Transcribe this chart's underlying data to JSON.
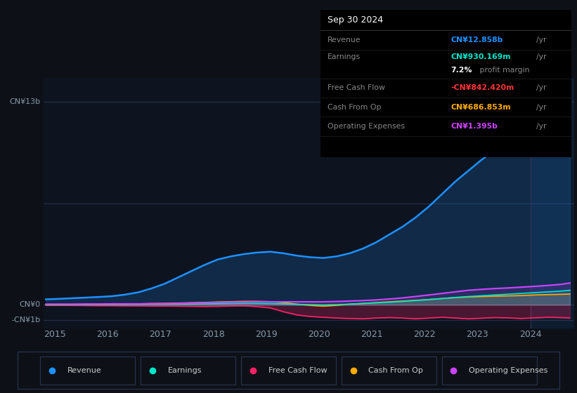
{
  "bg_color": "#0d1117",
  "plot_bg_color": "#0d1420",
  "grid_color": "#1e2535",
  "ylim": [
    -1500000000.0,
    14500000000.0
  ],
  "x_ticks": [
    2015,
    2016,
    2017,
    2018,
    2019,
    2020,
    2021,
    2022,
    2023,
    2024
  ],
  "tooltip": {
    "date": "Sep 30 2024",
    "revenue_label": "Revenue",
    "revenue_value": "CN¥12.858b",
    "revenue_color": "#1e90ff",
    "earnings_label": "Earnings",
    "earnings_value": "CN¥930.169m",
    "earnings_color": "#00e5cc",
    "profit_margin": "7.2%",
    "profit_margin_color": "#ffffff",
    "fcf_label": "Free Cash Flow",
    "fcf_value": "-CN¥842.420m",
    "fcf_color": "#ff3333",
    "cashop_label": "Cash From Op",
    "cashop_value": "CN¥686.853m",
    "cashop_color": "#ffaa00",
    "opex_label": "Operating Expenses",
    "opex_value": "CN¥1.395b",
    "opex_color": "#cc44ff"
  },
  "series": {
    "years": [
      2014.83,
      2015.08,
      2015.33,
      2015.58,
      2015.83,
      2016.08,
      2016.33,
      2016.58,
      2016.83,
      2017.08,
      2017.33,
      2017.58,
      2017.83,
      2018.08,
      2018.33,
      2018.58,
      2018.83,
      2019.08,
      2019.33,
      2019.58,
      2019.83,
      2020.08,
      2020.33,
      2020.58,
      2020.83,
      2021.08,
      2021.33,
      2021.58,
      2021.83,
      2022.08,
      2022.33,
      2022.58,
      2022.83,
      2023.08,
      2023.33,
      2023.58,
      2023.83,
      2024.08,
      2024.33,
      2024.58,
      2024.75
    ],
    "revenue": [
      350000000.0,
      380000000.0,
      420000000.0,
      460000000.0,
      500000000.0,
      550000000.0,
      650000000.0,
      800000000.0,
      1050000000.0,
      1350000000.0,
      1750000000.0,
      2150000000.0,
      2550000000.0,
      2900000000.0,
      3100000000.0,
      3250000000.0,
      3350000000.0,
      3400000000.0,
      3300000000.0,
      3150000000.0,
      3050000000.0,
      3000000000.0,
      3100000000.0,
      3300000000.0,
      3600000000.0,
      4000000000.0,
      4500000000.0,
      5000000000.0,
      5600000000.0,
      6300000000.0,
      7100000000.0,
      7900000000.0,
      8600000000.0,
      9300000000.0,
      9900000000.0,
      10500000000.0,
      11100000000.0,
      11700000000.0,
      12100000000.0,
      12500000000.0,
      12858000000.0
    ],
    "earnings": [
      10000000.0,
      10000000.0,
      10000000.0,
      10000000.0,
      20000000.0,
      20000000.0,
      20000000.0,
      20000000.0,
      30000000.0,
      30000000.0,
      40000000.0,
      50000000.0,
      60000000.0,
      70000000.0,
      80000000.0,
      90000000.0,
      90000000.0,
      80000000.0,
      60000000.0,
      30000000.0,
      10000000.0,
      -10000000.0,
      10000000.0,
      40000000.0,
      80000000.0,
      120000000.0,
      160000000.0,
      210000000.0,
      270000000.0,
      330000000.0,
      400000000.0,
      470000000.0,
      530000000.0,
      580000000.0,
      630000000.0,
      680000000.0,
      730000000.0,
      780000000.0,
      830000000.0,
      880000000.0,
      930000000.0
    ],
    "free_cash_flow": [
      -30000000.0,
      -30000000.0,
      -40000000.0,
      -50000000.0,
      -60000000.0,
      -60000000.0,
      -70000000.0,
      -70000000.0,
      -80000000.0,
      -80000000.0,
      -90000000.0,
      -100000000.0,
      -110000000.0,
      -100000000.0,
      -80000000.0,
      -70000000.0,
      -120000000.0,
      -200000000.0,
      -450000000.0,
      -650000000.0,
      -750000000.0,
      -800000000.0,
      -850000000.0,
      -880000000.0,
      -900000000.0,
      -850000000.0,
      -820000000.0,
      -850000000.0,
      -900000000.0,
      -850000000.0,
      -800000000.0,
      -850000000.0,
      -900000000.0,
      -860000000.0,
      -820000000.0,
      -840000000.0,
      -880000000.0,
      -840000000.0,
      -800000000.0,
      -820000000.0,
      -842000000.0
    ],
    "cash_from_op": [
      -10000000.0,
      -10000000.0,
      0.0,
      10000000.0,
      20000000.0,
      30000000.0,
      40000000.0,
      60000000.0,
      80000000.0,
      90000000.0,
      110000000.0,
      130000000.0,
      150000000.0,
      180000000.0,
      200000000.0,
      220000000.0,
      220000000.0,
      200000000.0,
      140000000.0,
      40000000.0,
      -40000000.0,
      -90000000.0,
      -40000000.0,
      40000000.0,
      90000000.0,
      140000000.0,
      190000000.0,
      240000000.0,
      290000000.0,
      340000000.0,
      400000000.0,
      460000000.0,
      500000000.0,
      530000000.0,
      550000000.0,
      570000000.0,
      590000000.0,
      630000000.0,
      650000000.0,
      670000000.0,
      687000000.0
    ],
    "operating_expenses": [
      40000000.0,
      40000000.0,
      40000000.0,
      50000000.0,
      50000000.0,
      60000000.0,
      60000000.0,
      60000000.0,
      70000000.0,
      70000000.0,
      90000000.0,
      110000000.0,
      130000000.0,
      150000000.0,
      170000000.0,
      180000000.0,
      190000000.0,
      190000000.0,
      190000000.0,
      190000000.0,
      190000000.0,
      190000000.0,
      210000000.0,
      240000000.0,
      270000000.0,
      310000000.0,
      370000000.0,
      440000000.0,
      530000000.0,
      630000000.0,
      730000000.0,
      830000000.0,
      930000000.0,
      990000000.0,
      1040000000.0,
      1080000000.0,
      1130000000.0,
      1180000000.0,
      1240000000.0,
      1310000000.0,
      1395000000.0
    ]
  },
  "colors": {
    "revenue": "#1e90ff",
    "earnings": "#00e5cc",
    "free_cash_flow": "#ff2266",
    "cash_from_op": "#ffaa00",
    "operating_expenses": "#cc44ff"
  },
  "legend": [
    {
      "label": "Revenue",
      "color": "#1e90ff"
    },
    {
      "label": "Earnings",
      "color": "#00e5cc"
    },
    {
      "label": "Free Cash Flow",
      "color": "#ff2266"
    },
    {
      "label": "Cash From Op",
      "color": "#ffaa00"
    },
    {
      "label": "Operating Expenses",
      "color": "#cc44ff"
    }
  ],
  "forecast_start": 2024.0,
  "forecast_color": "#1e90ff"
}
